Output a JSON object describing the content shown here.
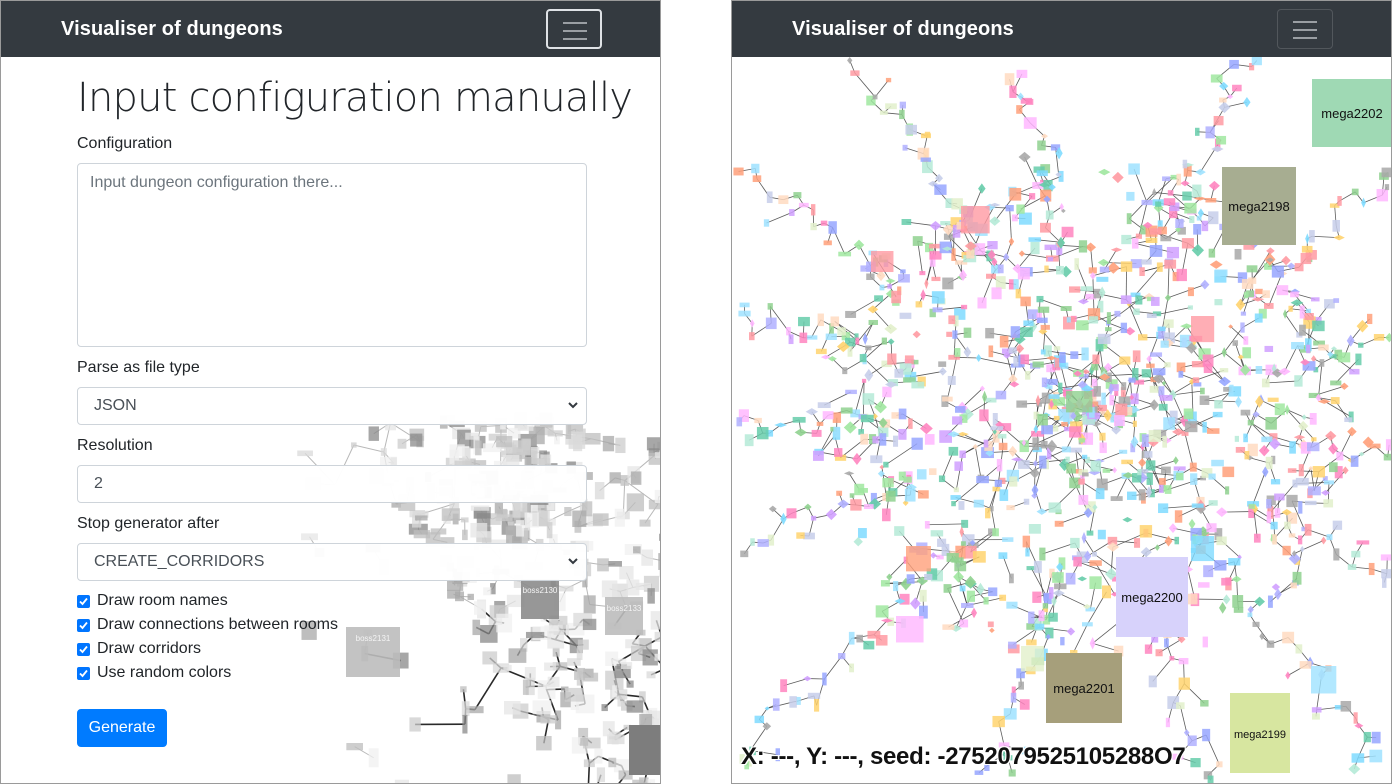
{
  "left": {
    "navbar": {
      "brand": "Visualiser of dungeons",
      "toggler_icon": "hamburger-icon"
    },
    "form": {
      "heading": "Input configuration manually",
      "configuration_label": "Configuration",
      "configuration_placeholder": "Input dungeon configuration there...",
      "configuration_value": "",
      "filetype_label": "Parse as file type",
      "filetype_value": "JSON",
      "resolution_label": "Resolution",
      "resolution_value": "2",
      "stop_label": "Stop generator after",
      "stop_value": "CREATE_CORRIDORS",
      "checkboxes": [
        {
          "label": "Draw room names",
          "checked": true
        },
        {
          "label": "Draw connections between rooms",
          "checked": true
        },
        {
          "label": "Draw corridors",
          "checked": true
        },
        {
          "label": "Use random colors",
          "checked": true
        }
      ],
      "generate_label": "Generate"
    },
    "background_rooms": [
      "boss2130",
      "boss2131",
      "boss2133"
    ]
  },
  "right": {
    "navbar": {
      "brand": "Visualiser of dungeons",
      "toggler_icon": "hamburger-icon"
    },
    "rooms": [
      {
        "name": "mega2202",
        "color": "#9fd9b4"
      },
      {
        "name": "mega2198",
        "color": "#a7ad91"
      },
      {
        "name": "mega2200",
        "color": "#d7d2fb"
      },
      {
        "name": "mega2201",
        "color": "#a69f7b"
      },
      {
        "name": "mega2199",
        "color": "#d7e6a0"
      }
    ],
    "status": "X: ---, Y: ---, seed: -2752079525105288O7"
  }
}
